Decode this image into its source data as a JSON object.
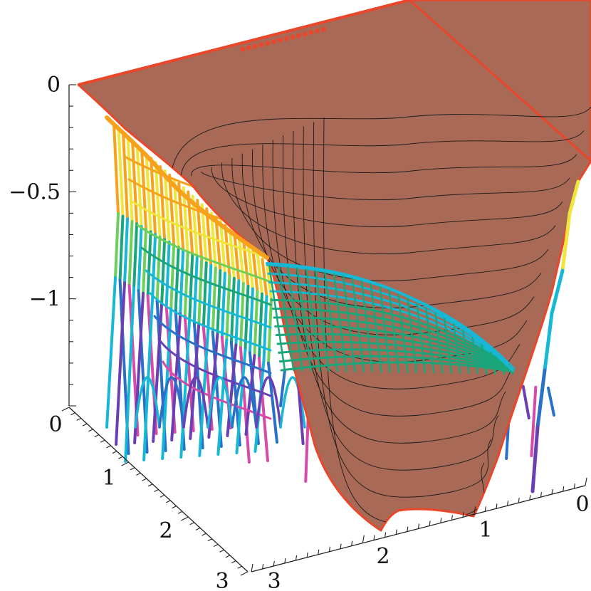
{
  "chart_data": {
    "type": "surface3d",
    "title": "",
    "xlabel": "",
    "ylabel": "",
    "zlabel": "",
    "x_range": [
      0,
      3
    ],
    "y_range": [
      0,
      3
    ],
    "z_range": [
      -1.5,
      0
    ],
    "z_ticks": [
      {
        "value": 0,
        "label": "0"
      },
      {
        "value": -0.5,
        "label": "−0.5"
      },
      {
        "value": -1,
        "label": "−1"
      }
    ],
    "x_ticks": [
      {
        "value": 0,
        "label": "0"
      },
      {
        "value": 1,
        "label": "1"
      },
      {
        "value": 2,
        "label": "2"
      },
      {
        "value": 3,
        "label": "3"
      }
    ],
    "y_ticks": [
      {
        "value": 0,
        "label": "0"
      },
      {
        "value": 1,
        "label": "1"
      },
      {
        "value": 2,
        "label": "2"
      },
      {
        "value": 3,
        "label": "3"
      }
    ],
    "surfaces": [
      {
        "style": "shaded-with-contours",
        "color": "#a86a56",
        "contour_count": 16,
        "min_value": -1.5,
        "max_value": 0
      },
      {
        "style": "wireframe-colormap",
        "colormap": [
          "#e8432a",
          "#f7a21d",
          "#f0e53a",
          "#6ccf5a",
          "#1aa57a",
          "#17b7d6",
          "#2a6fc8",
          "#6a3fb3",
          "#d64aa8"
        ]
      }
    ],
    "grid": false,
    "legend": "none"
  }
}
